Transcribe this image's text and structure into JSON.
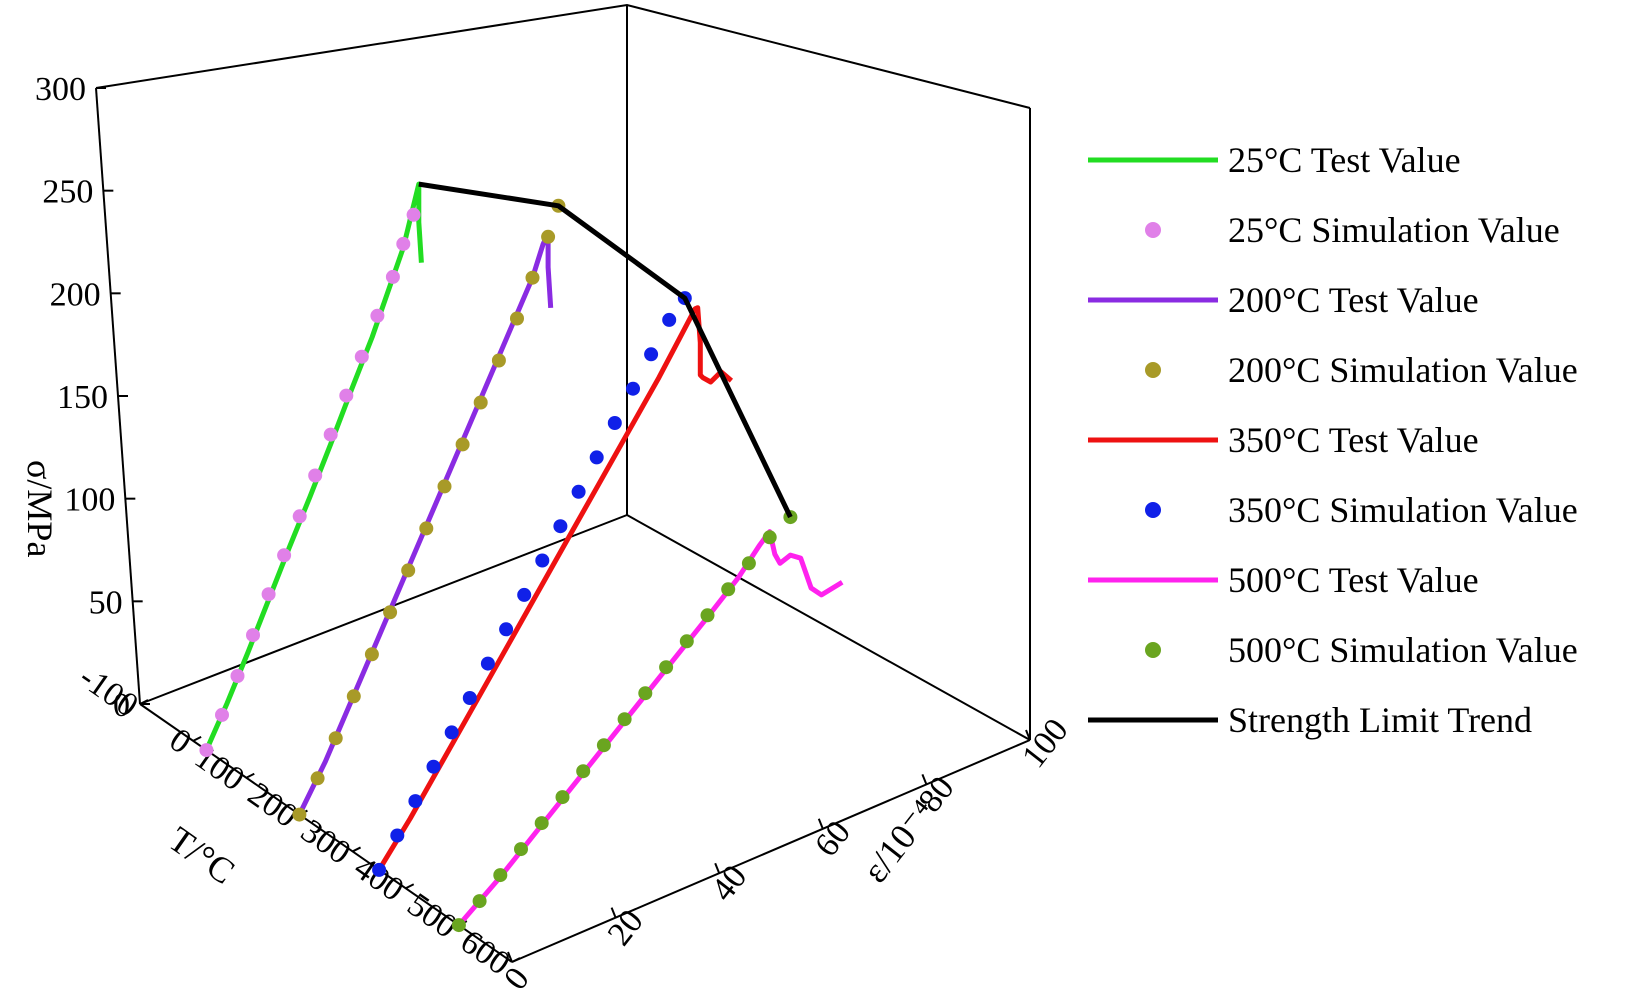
{
  "chart_data": {
    "type": "line",
    "title": "",
    "axes": {
      "stress": {
        "label": "σ/MPa",
        "range": [
          0,
          300
        ],
        "ticks": [
          "0",
          "50",
          "100",
          "150",
          "200",
          "250",
          "300"
        ]
      },
      "temperature": {
        "label": "T/°C",
        "range": [
          -100,
          600
        ],
        "ticks": [
          "-100",
          "0",
          "100",
          "200",
          "300",
          "400",
          "500",
          "600"
        ]
      },
      "strain": {
        "label": "ε/10⁻⁴",
        "range": [
          0,
          100
        ],
        "ticks": [
          "0",
          "20",
          "40",
          "60",
          "80",
          "100"
        ]
      }
    },
    "legend_position": "right",
    "series": [
      {
        "name": "25°C Test Value",
        "type": "line",
        "color": "#22dd22",
        "temperature": 25,
        "strain": [
          0,
          4,
          8,
          12,
          16,
          20,
          24,
          28,
          32,
          35,
          38,
          40,
          41,
          41,
          41.5
        ],
        "stress": [
          0,
          20,
          42,
          65,
          88,
          110,
          133,
          157,
          180,
          200,
          220,
          240,
          250,
          230,
          208
        ]
      },
      {
        "name": "25°C Simulation Value",
        "type": "scatter",
        "color": "#e080e8",
        "temperature": 25,
        "strain": [
          0,
          3,
          6,
          9,
          12,
          15,
          18,
          21,
          24,
          27,
          30,
          33,
          36,
          38,
          40
        ],
        "stress": [
          0,
          15,
          32,
          50,
          68,
          85,
          102,
          120,
          138,
          155,
          172,
          190,
          207,
          222,
          235
        ]
      },
      {
        "name": "200°C Test Value",
        "type": "line",
        "color": "#8a2be2",
        "temperature": 200,
        "strain": [
          0,
          5,
          10,
          15,
          20,
          25,
          30,
          35,
          40,
          45,
          47,
          48,
          48,
          48.5
        ],
        "stress": [
          0,
          22,
          48,
          74,
          100,
          126,
          152,
          178,
          204,
          230,
          245,
          250,
          232,
          210
        ]
      },
      {
        "name": "200°C Simulation Value",
        "type": "scatter",
        "color": "#a89a28",
        "temperature": 200,
        "strain": [
          0,
          3.5,
          7,
          10.5,
          14,
          17.5,
          21,
          24.5,
          28,
          31.5,
          35,
          38.5,
          42,
          45,
          48,
          50
        ],
        "stress": [
          0,
          15,
          32,
          50,
          68,
          86,
          104,
          122,
          140,
          158,
          176,
          194,
          212,
          230,
          248,
          262
        ]
      },
      {
        "name": "350°C Test Value",
        "type": "line",
        "color": "#ee1111",
        "temperature": 350,
        "strain": [
          0,
          6,
          12,
          18,
          24,
          30,
          36,
          42,
          48,
          54,
          58,
          60,
          61,
          61.5,
          62,
          62,
          62.5,
          64,
          66,
          68
        ],
        "stress": [
          0,
          20,
          42,
          64,
          86,
          108,
          130,
          152,
          174,
          196,
          212,
          220,
          224,
          224,
          205,
          188,
          186,
          182,
          185,
          178
        ]
      },
      {
        "name": "350°C Simulation Value",
        "type": "scatter",
        "color": "#1020e8",
        "temperature": 350,
        "strain": [
          0,
          3.5,
          7,
          10.5,
          14,
          17.5,
          21,
          24.5,
          28,
          31.5,
          35,
          38.5,
          42,
          45.5,
          49,
          52.5,
          56,
          59
        ],
        "stress": [
          0,
          14,
          28,
          42,
          56,
          70,
          84,
          98,
          112,
          126,
          140,
          154,
          168,
          182,
          196,
          210,
          224,
          232
        ]
      },
      {
        "name": "500°C Test Value",
        "type": "line",
        "color": "#ff22ee",
        "temperature": 500,
        "strain": [
          0,
          8,
          16,
          24,
          32,
          40,
          48,
          54,
          58,
          60,
          61,
          62,
          64,
          66,
          68,
          70,
          74
        ],
        "stress": [
          0,
          16,
          34,
          52,
          70,
          88,
          106,
          120,
          132,
          137,
          124,
          118,
          120,
          116,
          98,
          92,
          94
        ]
      },
      {
        "name": "500°C Simulation Value",
        "type": "scatter",
        "color": "#6aa520",
        "temperature": 500,
        "strain": [
          0,
          4,
          8,
          12,
          16,
          20,
          24,
          28,
          32,
          36,
          40,
          44,
          48,
          52,
          56,
          60,
          64
        ],
        "stress": [
          0,
          8,
          17,
          26,
          35,
          44,
          53,
          62,
          71,
          80,
          89,
          98,
          107,
          116,
          125,
          134,
          140
        ]
      },
      {
        "name": "Strength Limit Trend",
        "type": "line",
        "color": "#000000",
        "temperature": [
          25,
          200,
          350,
          500
        ],
        "strain": [
          41,
          50,
          59,
          64
        ],
        "stress": [
          250,
          262,
          232,
          140
        ]
      }
    ]
  }
}
